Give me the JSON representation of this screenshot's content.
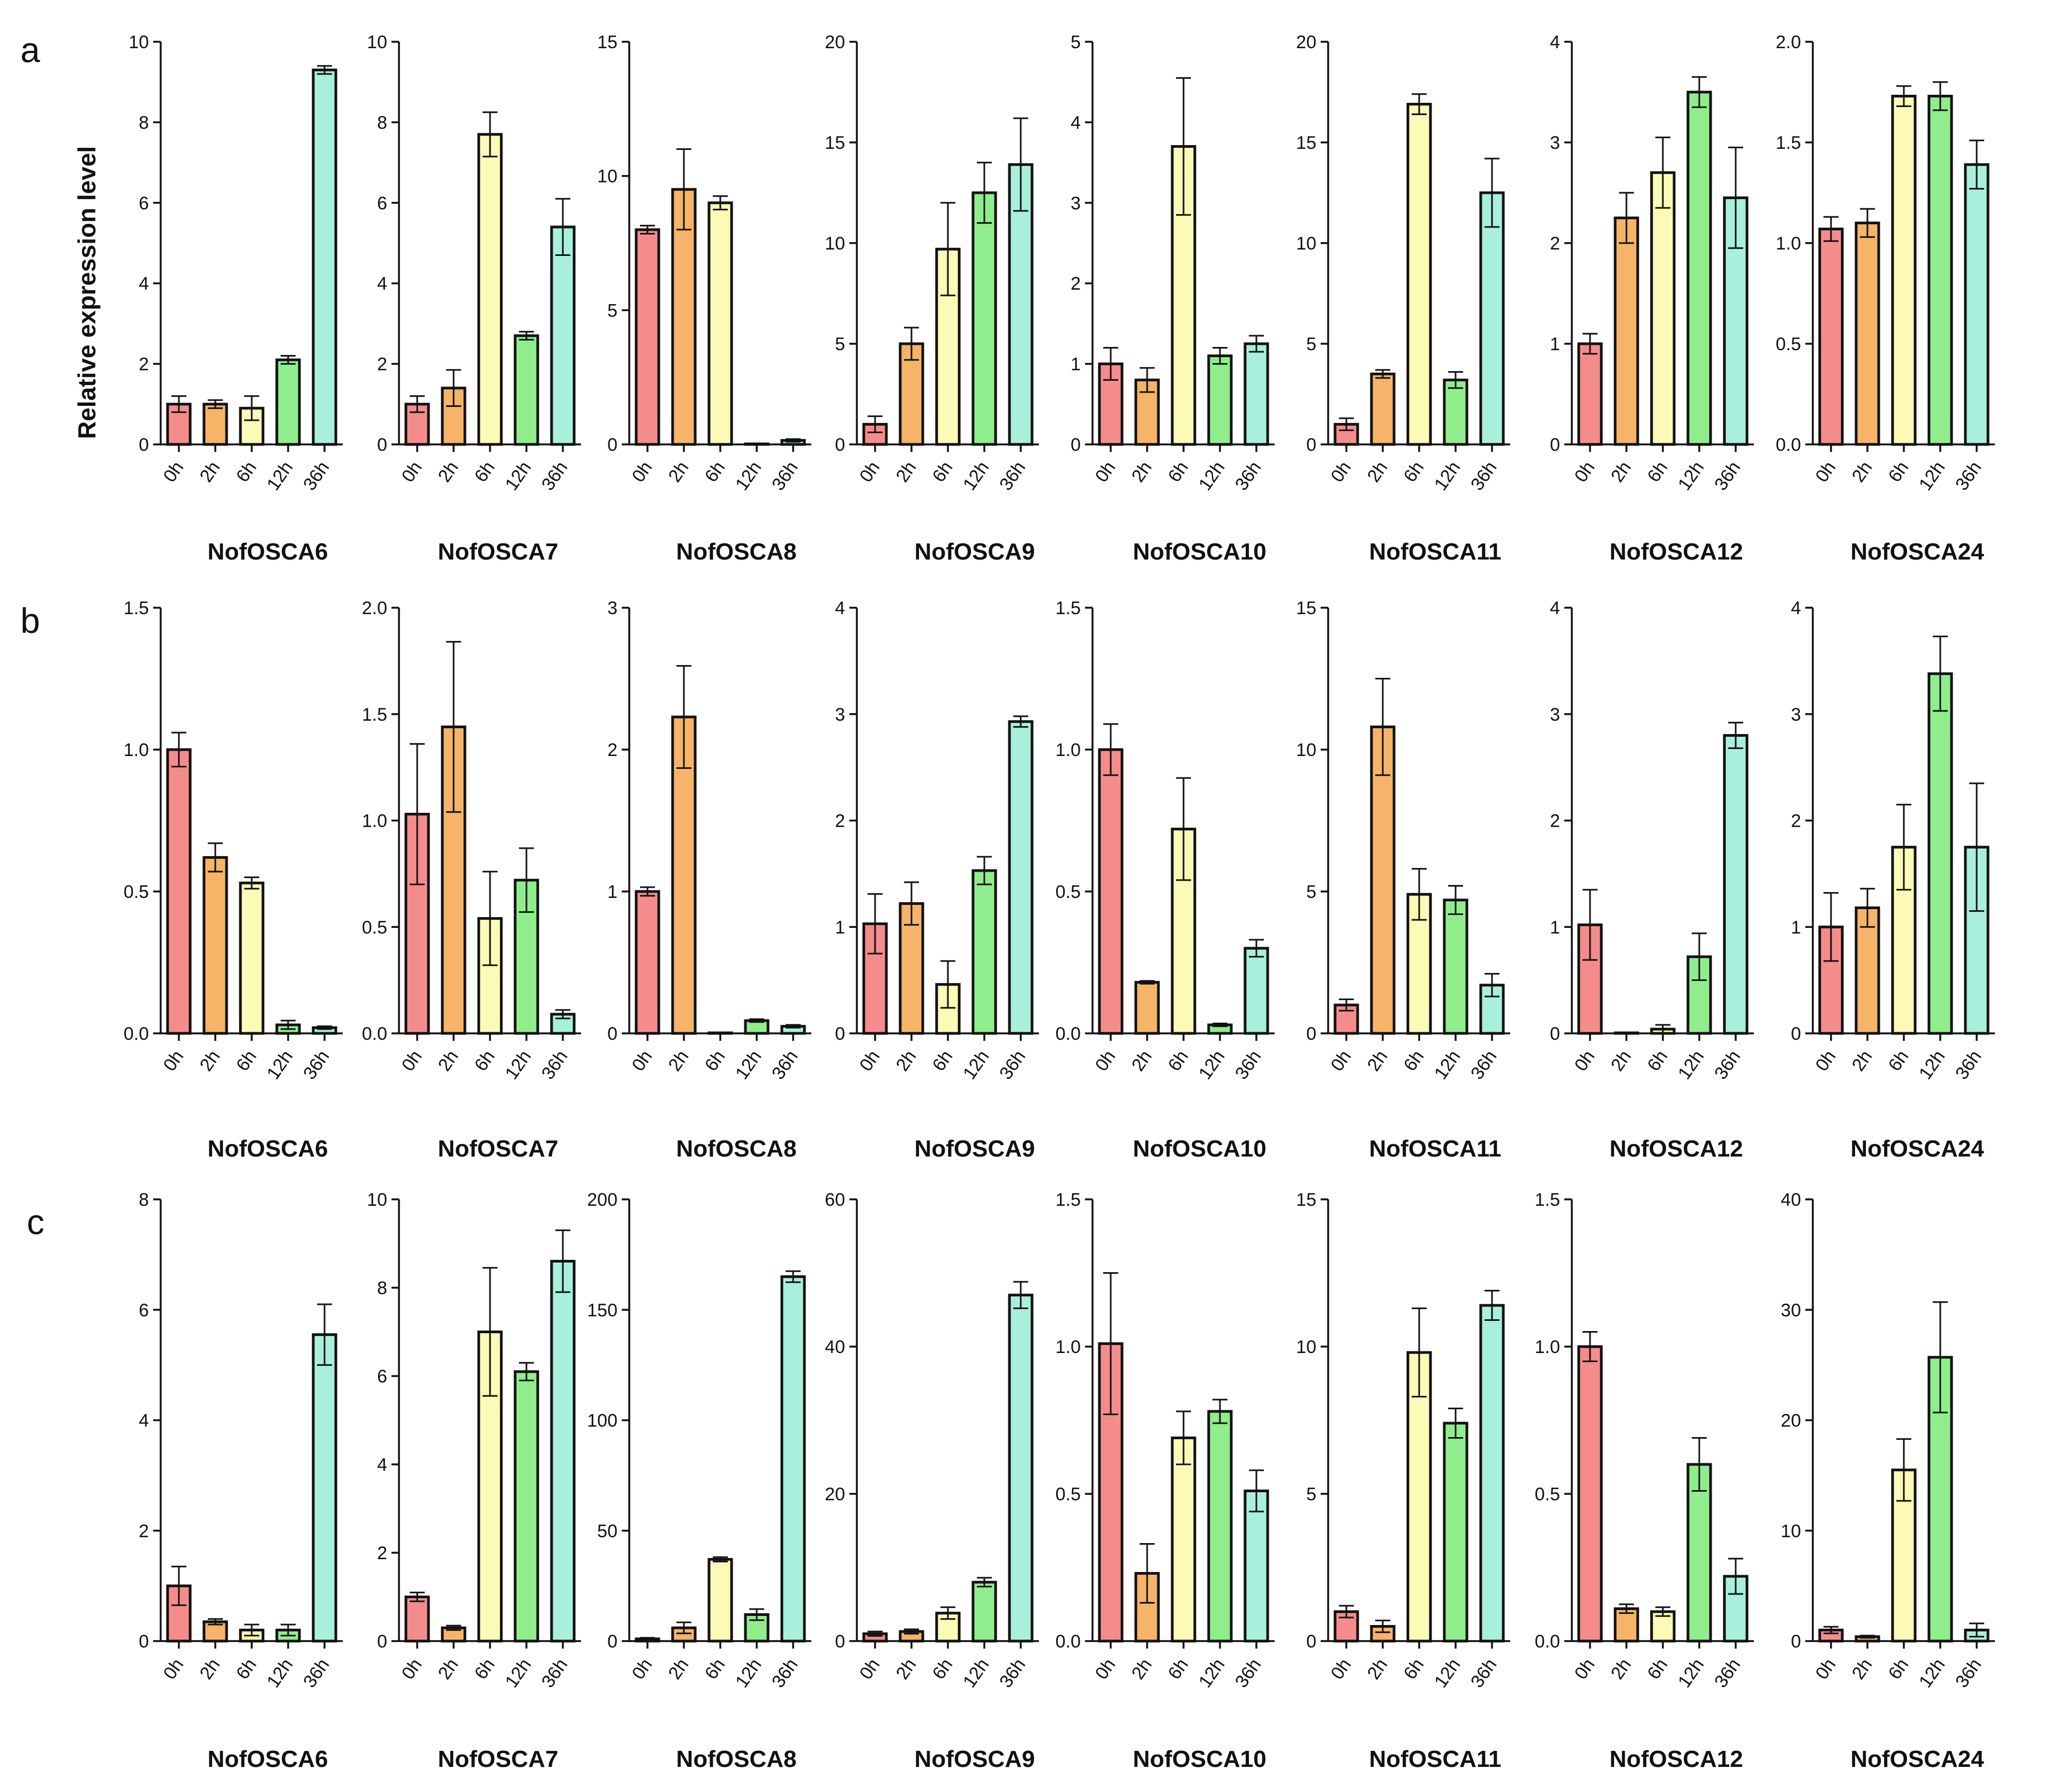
{
  "y_axis_label": "Relative expression level",
  "colors": [
    "#f58c8c",
    "#f5b468",
    "#fbfab6",
    "#8fee8b",
    "#a8f0dc"
  ],
  "chart_data": [
    {
      "panel": "a",
      "type": "bar",
      "categories": [
        "0h",
        "2h",
        "6h",
        "12h",
        "36h"
      ],
      "charts": [
        {
          "title": "NofOSCA6",
          "ylim": [
            0,
            10
          ],
          "yticks": [
            "0",
            "2",
            "4",
            "6",
            "8",
            "10"
          ],
          "values": [
            1.0,
            1.0,
            0.9,
            2.1,
            9.3
          ],
          "errors": [
            0.2,
            0.1,
            0.3,
            0.1,
            0.1
          ]
        },
        {
          "title": "NofOSCA7",
          "ylim": [
            0,
            10
          ],
          "yticks": [
            "0",
            "2",
            "4",
            "6",
            "8",
            "10"
          ],
          "values": [
            1.0,
            1.4,
            7.7,
            2.7,
            5.4
          ],
          "errors": [
            0.2,
            0.45,
            0.55,
            0.1,
            0.7
          ]
        },
        {
          "title": "NofOSCA8",
          "ylim": [
            0,
            15
          ],
          "yticks": [
            "0",
            "5",
            "10",
            "15"
          ],
          "values": [
            8.0,
            9.5,
            9.0,
            0.0,
            0.15
          ],
          "errors": [
            0.15,
            1.5,
            0.25,
            0.0,
            0.05
          ]
        },
        {
          "title": "NofOSCA9",
          "ylim": [
            0,
            20
          ],
          "yticks": [
            "0",
            "5",
            "10",
            "15",
            "20"
          ],
          "values": [
            1.0,
            5.0,
            9.7,
            12.5,
            13.9
          ],
          "errors": [
            0.4,
            0.8,
            2.3,
            1.5,
            2.3
          ]
        },
        {
          "title": "NofOSCA10",
          "ylim": [
            0,
            5
          ],
          "yticks": [
            "0",
            "1",
            "2",
            "3",
            "4",
            "5"
          ],
          "values": [
            1.0,
            0.8,
            3.7,
            1.1,
            1.25
          ],
          "errors": [
            0.2,
            0.15,
            0.85,
            0.1,
            0.1
          ]
        },
        {
          "title": "NofOSCA11",
          "ylim": [
            0,
            20
          ],
          "yticks": [
            "0",
            "5",
            "10",
            "15",
            "20"
          ],
          "values": [
            1.0,
            3.5,
            16.9,
            3.2,
            12.5
          ],
          "errors": [
            0.3,
            0.2,
            0.5,
            0.4,
            1.7
          ]
        },
        {
          "title": "NofOSCA12",
          "ylim": [
            0,
            4
          ],
          "yticks": [
            "0",
            "1",
            "2",
            "3",
            "4"
          ],
          "values": [
            1.0,
            2.25,
            2.7,
            3.5,
            2.45
          ],
          "errors": [
            0.1,
            0.25,
            0.35,
            0.15,
            0.5
          ]
        },
        {
          "title": "NofOSCA24",
          "ylim": [
            0,
            2
          ],
          "yticks": [
            "0.0",
            "0.5",
            "1.0",
            "1.5",
            "2.0"
          ],
          "values": [
            1.07,
            1.1,
            1.73,
            1.73,
            1.39
          ],
          "errors": [
            0.06,
            0.07,
            0.05,
            0.07,
            0.12
          ]
        }
      ]
    },
    {
      "panel": "b",
      "type": "bar",
      "categories": [
        "0h",
        "2h",
        "6h",
        "12h",
        "36h"
      ],
      "charts": [
        {
          "title": "NofOSCA6",
          "ylim": [
            0,
            1.5
          ],
          "yticks": [
            "0.0",
            "0.5",
            "1.0",
            "1.5"
          ],
          "values": [
            1.0,
            0.62,
            0.53,
            0.03,
            0.02
          ],
          "errors": [
            0.06,
            0.05,
            0.02,
            0.015,
            0.005
          ]
        },
        {
          "title": "NofOSCA7",
          "ylim": [
            0,
            2
          ],
          "yticks": [
            "0.0",
            "0.5",
            "1.0",
            "1.5",
            "2.0"
          ],
          "values": [
            1.03,
            1.44,
            0.54,
            0.72,
            0.09
          ],
          "errors": [
            0.33,
            0.4,
            0.22,
            0.15,
            0.02
          ]
        },
        {
          "title": "NofOSCA8",
          "ylim": [
            0,
            3
          ],
          "yticks": [
            "0",
            "1",
            "2",
            "3"
          ],
          "values": [
            1.0,
            2.23,
            0.0,
            0.09,
            0.05
          ],
          "errors": [
            0.03,
            0.36,
            0.0,
            0.01,
            0.01
          ]
        },
        {
          "title": "NofOSCA9",
          "ylim": [
            0,
            4
          ],
          "yticks": [
            "0",
            "1",
            "2",
            "3",
            "4"
          ],
          "values": [
            1.03,
            1.22,
            0.46,
            1.53,
            2.93
          ],
          "errors": [
            0.28,
            0.2,
            0.22,
            0.13,
            0.05
          ]
        },
        {
          "title": "NofOSCA10",
          "ylim": [
            0,
            1.5
          ],
          "yticks": [
            "0.0",
            "0.5",
            "1.0",
            "1.5"
          ],
          "values": [
            1.0,
            0.18,
            0.72,
            0.03,
            0.3
          ],
          "errors": [
            0.09,
            0.005,
            0.18,
            0.005,
            0.03
          ]
        },
        {
          "title": "NofOSCA11",
          "ylim": [
            0,
            15
          ],
          "yticks": [
            "0",
            "5",
            "10",
            "15"
          ],
          "values": [
            1.0,
            10.8,
            4.9,
            4.7,
            1.7
          ],
          "errors": [
            0.2,
            1.7,
            0.9,
            0.5,
            0.4
          ]
        },
        {
          "title": "NofOSCA12",
          "ylim": [
            0,
            4
          ],
          "yticks": [
            "0",
            "1",
            "2",
            "3",
            "4"
          ],
          "values": [
            1.02,
            0.0,
            0.04,
            0.72,
            2.8
          ],
          "errors": [
            0.33,
            0.0,
            0.04,
            0.22,
            0.12
          ]
        },
        {
          "title": "NofOSCA24",
          "ylim": [
            0,
            4
          ],
          "yticks": [
            "0",
            "1",
            "2",
            "3",
            "4"
          ],
          "values": [
            1.0,
            1.18,
            1.75,
            3.38,
            1.75
          ],
          "errors": [
            0.32,
            0.18,
            0.4,
            0.35,
            0.6
          ]
        }
      ]
    },
    {
      "panel": "c",
      "type": "bar",
      "categories": [
        "0h",
        "2h",
        "6h",
        "12h",
        "36h"
      ],
      "charts": [
        {
          "title": "NofOSCA6",
          "ylim": [
            0,
            8
          ],
          "yticks": [
            "0",
            "2",
            "4",
            "6",
            "8"
          ],
          "values": [
            1.0,
            0.35,
            0.2,
            0.2,
            5.55
          ],
          "errors": [
            0.35,
            0.05,
            0.1,
            0.1,
            0.55
          ]
        },
        {
          "title": "NofOSCA7",
          "ylim": [
            0,
            10
          ],
          "yticks": [
            "0",
            "2",
            "4",
            "6",
            "8",
            "10"
          ],
          "values": [
            1.0,
            0.3,
            7.0,
            6.1,
            8.6
          ],
          "errors": [
            0.1,
            0.05,
            1.45,
            0.2,
            0.7
          ]
        },
        {
          "title": "NofOSCA8",
          "ylim": [
            0,
            200
          ],
          "yticks": [
            "0",
            "50",
            "100",
            "150",
            "200"
          ],
          "values": [
            1.0,
            6.0,
            37.0,
            12.0,
            165.0
          ],
          "errors": [
            0.5,
            2.5,
            1.0,
            2.5,
            2.5
          ]
        },
        {
          "title": "NofOSCA9",
          "ylim": [
            0,
            60
          ],
          "yticks": [
            "0",
            "20",
            "40",
            "60"
          ],
          "values": [
            1.0,
            1.3,
            3.8,
            8.0,
            47.0
          ],
          "errors": [
            0.3,
            0.3,
            0.8,
            0.6,
            1.8
          ]
        },
        {
          "title": "NofOSCA10",
          "ylim": [
            0,
            1.5
          ],
          "yticks": [
            "0.0",
            "0.5",
            "1.0",
            "1.5"
          ],
          "values": [
            1.01,
            0.23,
            0.69,
            0.78,
            0.51
          ],
          "errors": [
            0.24,
            0.1,
            0.09,
            0.04,
            0.07
          ]
        },
        {
          "title": "NofOSCA11",
          "ylim": [
            0,
            15
          ],
          "yticks": [
            "0",
            "5",
            "10",
            "15"
          ],
          "values": [
            1.0,
            0.5,
            9.8,
            7.4,
            11.4
          ],
          "errors": [
            0.2,
            0.2,
            1.5,
            0.5,
            0.5
          ]
        },
        {
          "title": "NofOSCA12",
          "ylim": [
            0,
            1.5
          ],
          "yticks": [
            "0.0",
            "0.5",
            "1.0",
            "1.5"
          ],
          "values": [
            1.0,
            0.11,
            0.1,
            0.6,
            0.22
          ],
          "errors": [
            0.05,
            0.015,
            0.015,
            0.09,
            0.06
          ]
        },
        {
          "title": "NofOSCA24",
          "ylim": [
            0,
            40
          ],
          "yticks": [
            "0",
            "10",
            "20",
            "30",
            "40"
          ],
          "values": [
            1.0,
            0.4,
            15.5,
            25.7,
            1.0
          ],
          "errors": [
            0.3,
            0.1,
            2.8,
            5.0,
            0.6
          ]
        }
      ]
    }
  ]
}
